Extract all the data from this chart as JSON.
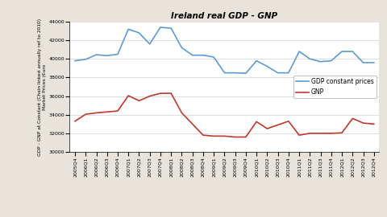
{
  "title": "Ireland real GDP - GNP",
  "ylabel": "GDP - GNP at Constant (Chain linked annually ref to 2010)\nMarket Prices (€uro",
  "ylim": [
    30000,
    44000
  ],
  "yticks": [
    30000,
    32000,
    34000,
    36000,
    38000,
    40000,
    42000,
    44000
  ],
  "quarters": [
    "2005Q4",
    "2006Q1",
    "2006Q2",
    "2006Q3",
    "2006Q4",
    "2007Q1",
    "2007Q2",
    "2007Q3",
    "2007Q4",
    "2008Q1",
    "2008Q2",
    "2008Q3",
    "2008Q4",
    "2009Q1",
    "2009Q2",
    "2009Q3",
    "2009Q4",
    "2010Q1",
    "2010Q2",
    "2010Q3",
    "2010Q4",
    "2011Q1",
    "2011Q2",
    "2011Q3",
    "2011Q4",
    "2012Q1",
    "2012Q2",
    "2012Q3",
    "2012Q4"
  ],
  "gdp": [
    39800,
    39950,
    40450,
    40350,
    40500,
    43200,
    42800,
    41600,
    43400,
    43300,
    41200,
    40400,
    40400,
    40200,
    38500,
    38500,
    38450,
    39800,
    39200,
    38500,
    38500,
    40800,
    40000,
    39700,
    39800,
    40800,
    40800,
    39600,
    39600
  ],
  "gnp": [
    33300,
    34050,
    34200,
    34300,
    34400,
    36050,
    35500,
    36000,
    36300,
    36300,
    34200,
    33000,
    31800,
    31700,
    31700,
    31600,
    31600,
    33250,
    32500,
    32900,
    33300,
    31800,
    32000,
    32000,
    32000,
    32050,
    33600,
    33100,
    33000
  ],
  "gdp_color": "#5b9bd5",
  "gnp_color": "#c0392b",
  "bg_color": "#e8e4dc",
  "plot_bg_color": "#ffffff",
  "grid_color": "#d0d0d0",
  "title_fontsize": 7.5,
  "label_fontsize": 4.2,
  "tick_fontsize": 4.5,
  "legend_fontsize": 5.5
}
